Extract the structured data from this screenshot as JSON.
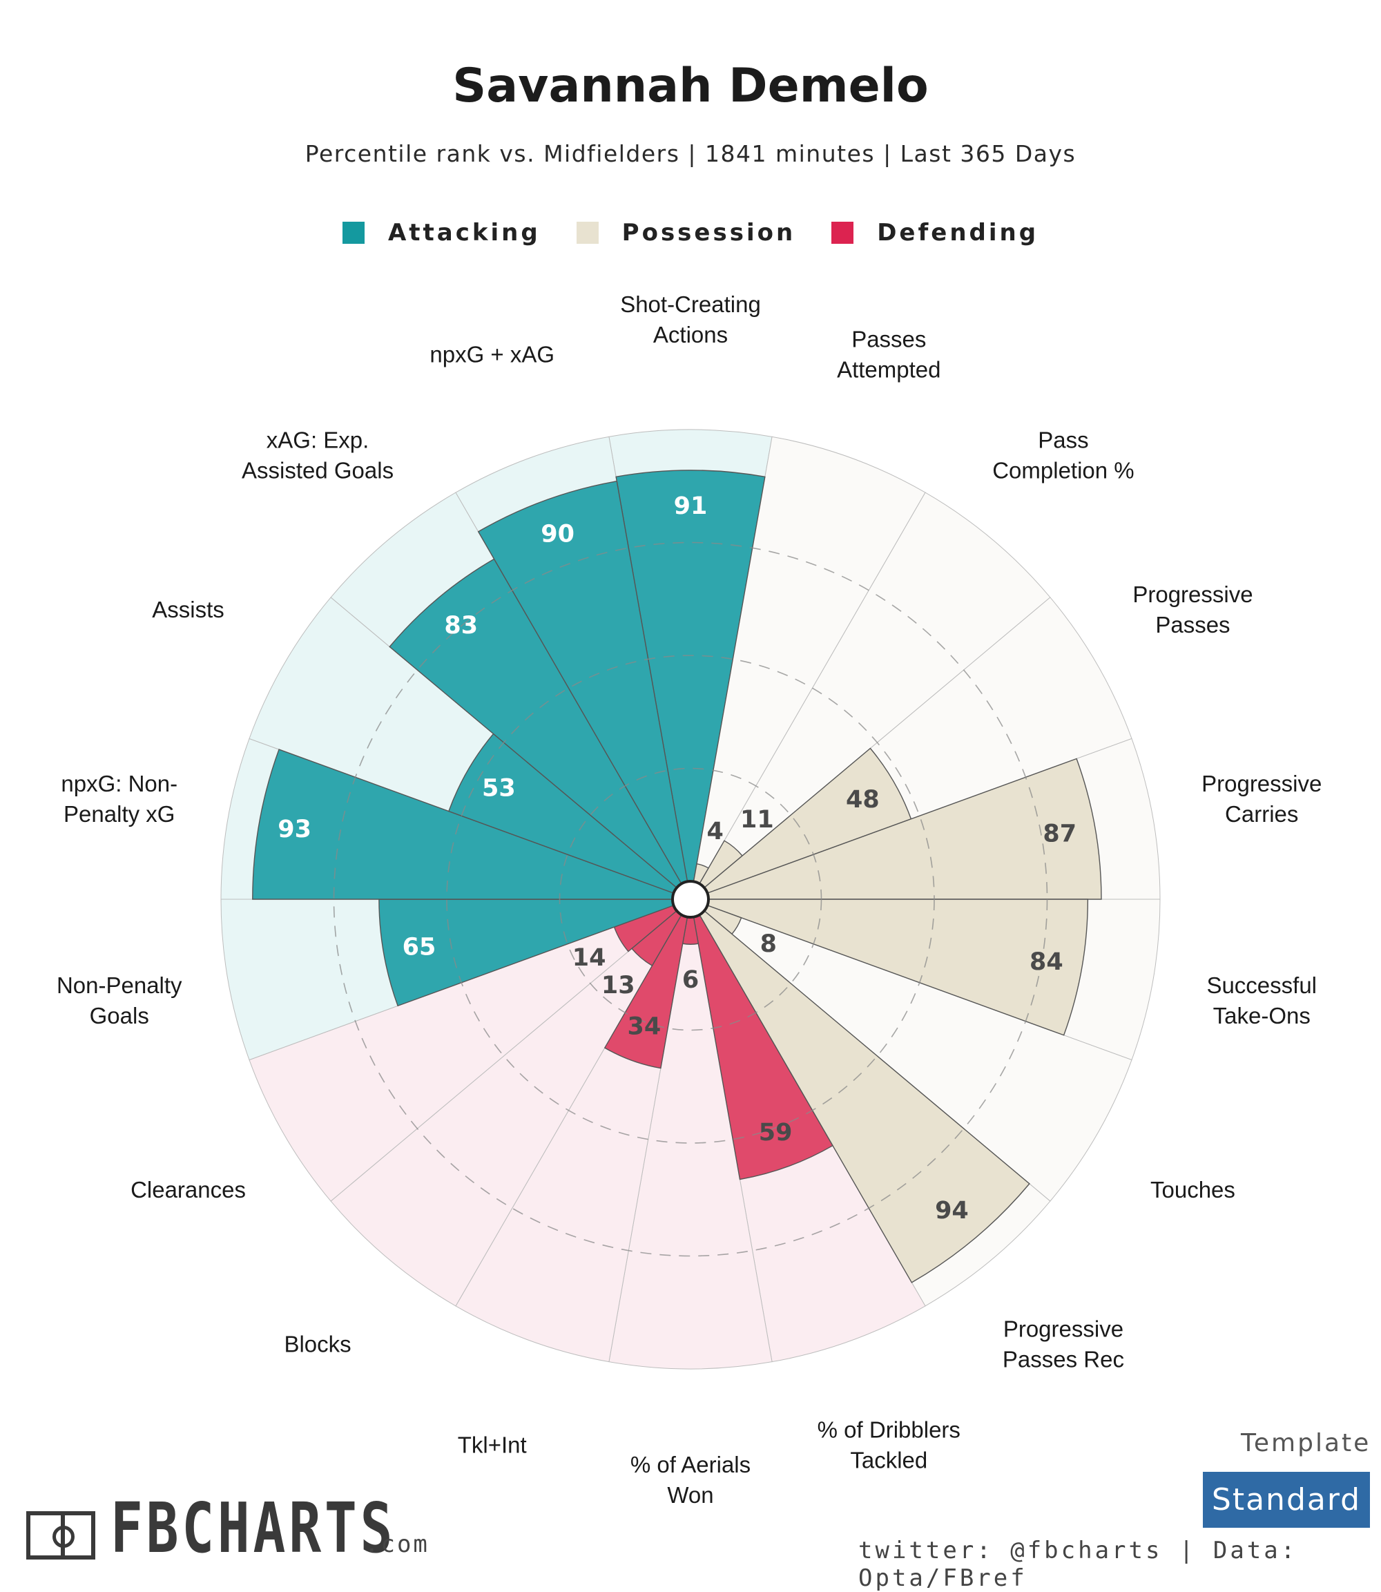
{
  "header": {
    "title": "Savannah Demelo",
    "subtitle": "Percentile rank vs. Midfielders | 1841 minutes | Last 365 Days"
  },
  "legend": [
    {
      "label": "Attacking",
      "color": "#2fa6ad"
    },
    {
      "label": "Possession",
      "color": "#e8e2d0"
    },
    {
      "label": "Defending",
      "color": "#e04a6b"
    }
  ],
  "template": {
    "label": "Template",
    "value": "Standard"
  },
  "footer": {
    "credit": "twitter: @fbcharts | Data: Opta/FBref",
    "logo_text": "FBCHARTS",
    "logo_suffix": ".com"
  },
  "chart_data": {
    "type": "polar-bar",
    "rmax": 100,
    "rings": [
      25,
      50,
      75
    ],
    "groups": {
      "Attacking": {
        "fill": "#2fa6ad",
        "bg": "#e8f6f6",
        "labelColor": "#ffffff"
      },
      "Possession": {
        "fill": "#e8e2d0",
        "bg": "#fbfaf8",
        "labelColor": "#4a4a4a"
      },
      "Defending": {
        "fill": "#e04a6b",
        "bg": "#fbedf1",
        "labelColor": "#4a4a4a"
      }
    },
    "series": [
      {
        "label": "Shot-Creating\nActions",
        "value": 91,
        "group": "Attacking"
      },
      {
        "label": "Passes\nAttempted",
        "value": 4,
        "group": "Possession"
      },
      {
        "label": "Pass\nCompletion %",
        "value": 11,
        "group": "Possession"
      },
      {
        "label": "Progressive\nPasses",
        "value": 48,
        "group": "Possession"
      },
      {
        "label": "Progressive\nCarries",
        "value": 87,
        "group": "Possession"
      },
      {
        "label": "Successful\nTake-Ons",
        "value": 84,
        "group": "Possession"
      },
      {
        "label": "Touches",
        "value": 8,
        "group": "Possession"
      },
      {
        "label": "Progressive\nPasses Rec",
        "value": 94,
        "group": "Possession"
      },
      {
        "label": "% of Dribblers\nTackled",
        "value": 59,
        "group": "Defending"
      },
      {
        "label": "% of Aerials\nWon",
        "value": 6,
        "group": "Defending"
      },
      {
        "label": "Tkl+Int",
        "value": 34,
        "group": "Defending"
      },
      {
        "label": "Blocks",
        "value": 13,
        "group": "Defending"
      },
      {
        "label": "Clearances",
        "value": 14,
        "group": "Defending"
      },
      {
        "label": "Non-Penalty\nGoals",
        "value": 65,
        "group": "Attacking"
      },
      {
        "label": "npxG: Non-\nPenalty xG",
        "value": 93,
        "group": "Attacking"
      },
      {
        "label": "Assists",
        "value": 53,
        "group": "Attacking"
      },
      {
        "label": "xAG: Exp.\nAssisted Goals",
        "value": 83,
        "group": "Attacking"
      },
      {
        "label": "npxG + xAG",
        "value": 90,
        "group": "Attacking"
      }
    ]
  }
}
